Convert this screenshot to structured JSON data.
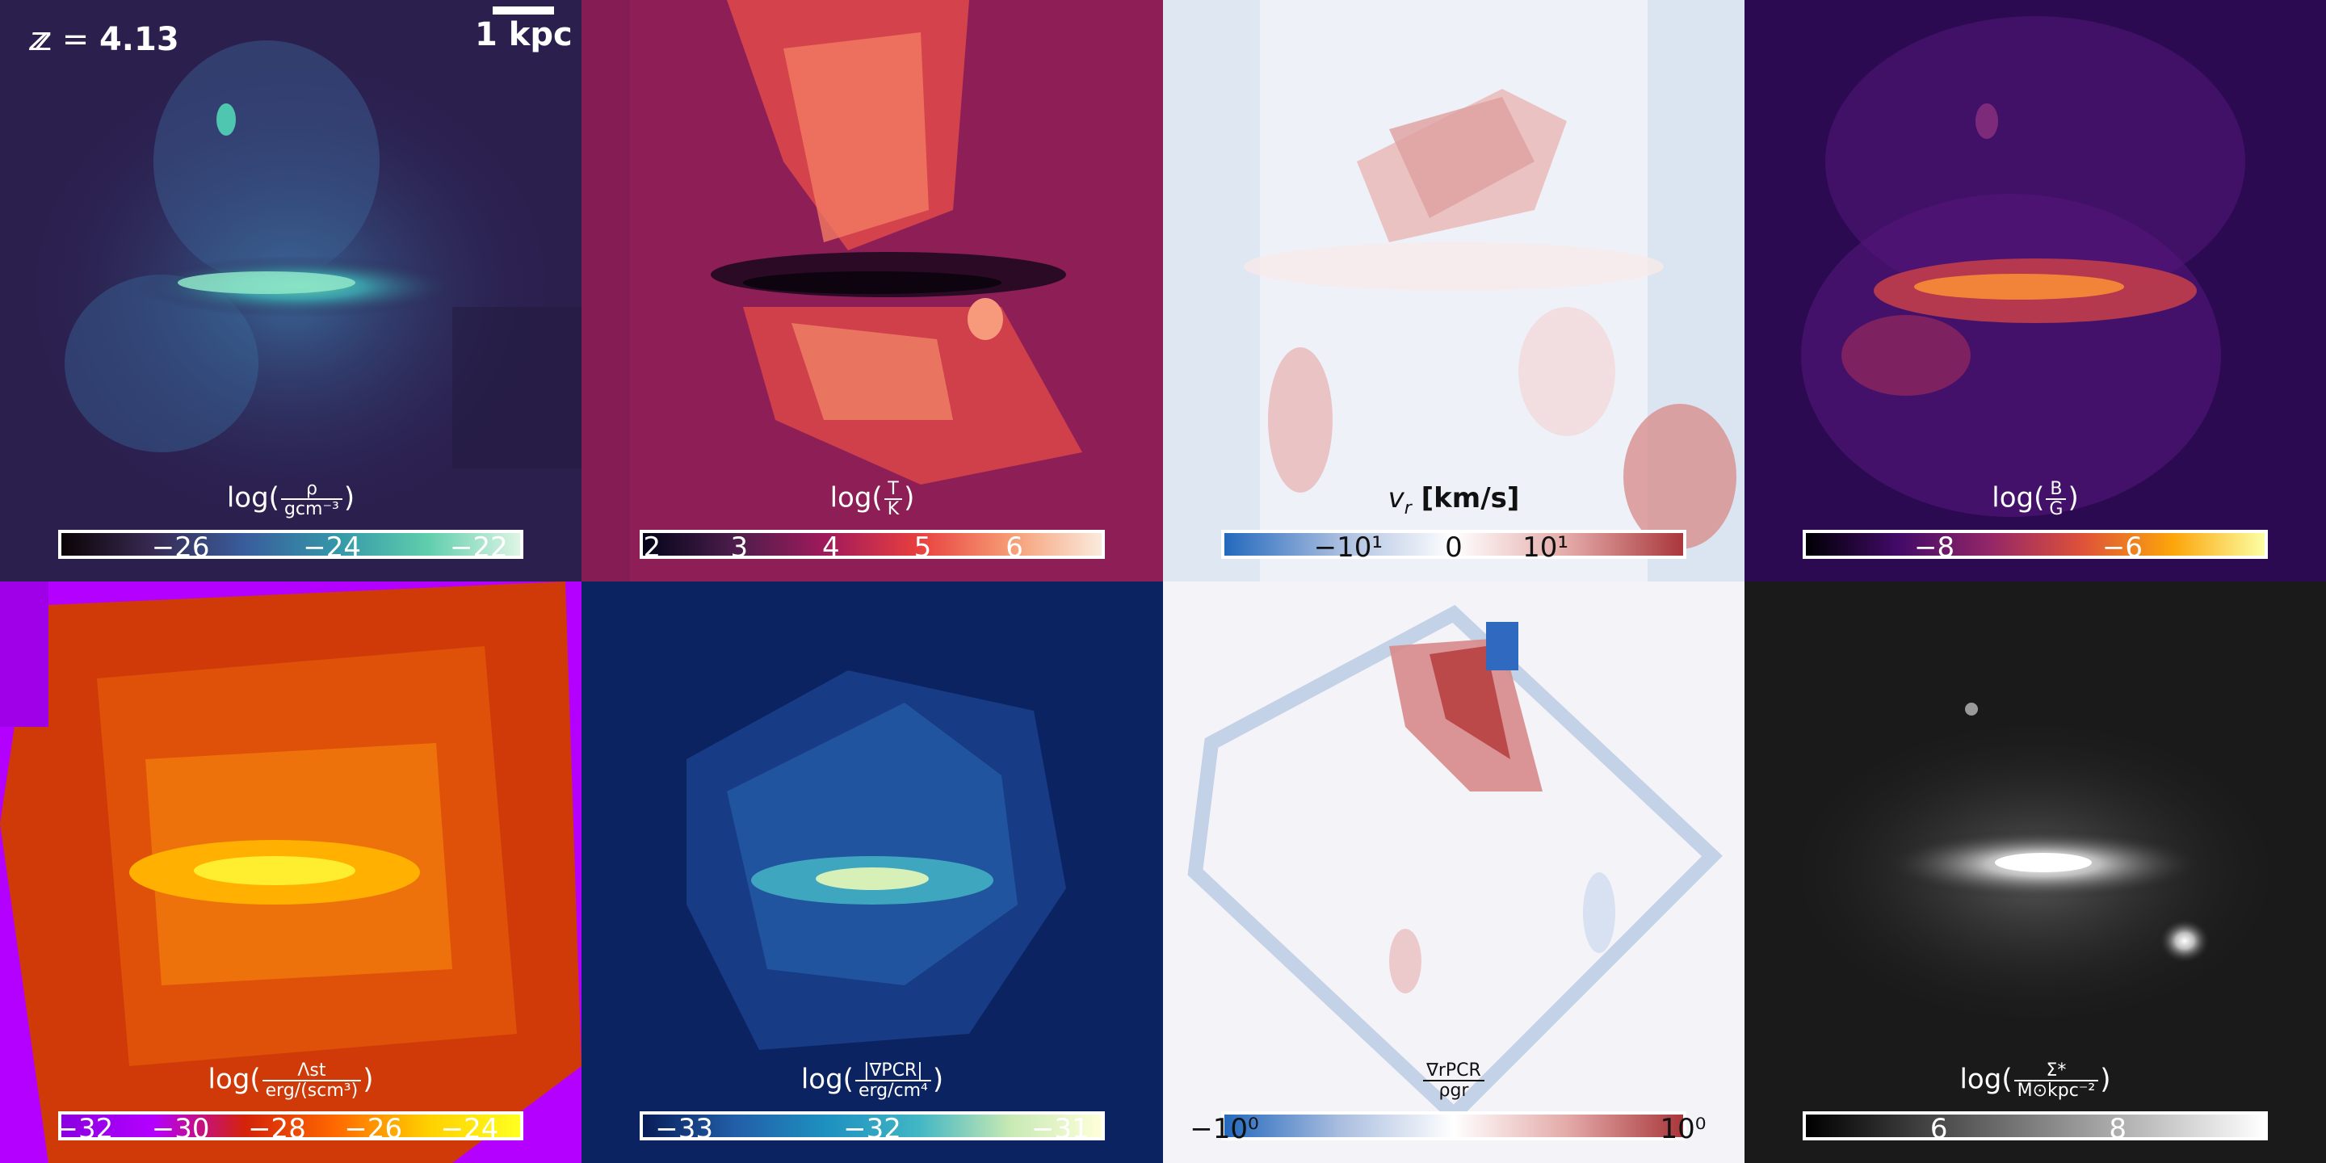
{
  "header": {
    "redshift_prefix": "z = ",
    "redshift_value": "4.13",
    "scale_label": "1 kpc"
  },
  "panels": [
    {
      "id": "density",
      "label_prefix": "log(",
      "label_num": "ρ",
      "label_den": "gcm⁻³",
      "label_suffix": ")",
      "colormap": "mako",
      "cbar_colors": [
        "#0b0405",
        "#382a54",
        "#395d9c",
        "#3497a9",
        "#60ceac",
        "#def5e5"
      ],
      "ticks": [
        "−26",
        "−24",
        "−22"
      ],
      "background": "#2b1f4e"
    },
    {
      "id": "temperature",
      "label_prefix": "log(",
      "label_num": "T",
      "label_den": "K",
      "label_suffix": ")",
      "colormap": "rocket",
      "cbar_colors": [
        "#03051a",
        "#4c1d4b",
        "#a11a5b",
        "#e83f3f",
        "#f69c73",
        "#faebdd"
      ],
      "ticks": [
        "2",
        "3",
        "4",
        "5",
        "6"
      ],
      "background": "#8e1f56"
    },
    {
      "id": "radial-velocity",
      "label_main": "v",
      "label_sub": "r",
      "label_unit": " [km/s]",
      "colormap": "vlag",
      "cbar_colors": [
        "#2369bd",
        "#a9bddf",
        "#ffffff",
        "#e3a9a7",
        "#a9373b"
      ],
      "ticks": [
        "−10¹",
        "0",
        "10¹"
      ],
      "background": "#eef2f8"
    },
    {
      "id": "magnetic-field",
      "label_prefix": "log(",
      "label_num": "B",
      "label_den": "G",
      "label_suffix": ")",
      "colormap": "plasma-inferno",
      "cbar_colors": [
        "#000004",
        "#420a68",
        "#932667",
        "#dd513a",
        "#fca50a",
        "#fcffa4"
      ],
      "ticks": [
        "−8",
        "−6"
      ],
      "background": "#2c0a52"
    },
    {
      "id": "streaming-heating",
      "label_prefix": "log(",
      "label_num": "Λst",
      "label_den": "erg/(scm³)",
      "label_suffix": ")",
      "colormap": "gnuplot",
      "cbar_colors": [
        "#8a00e0",
        "#b400ff",
        "#d4220a",
        "#ff6a00",
        "#ffd000",
        "#ffff20"
      ],
      "ticks": [
        "−32",
        "−30",
        "−28",
        "−26",
        "−24"
      ],
      "background": "#c83a0a"
    },
    {
      "id": "cr-pressure-gradient",
      "label_prefix": "log(",
      "label_num": "|∇PCR|",
      "label_den": "erg/cm⁴",
      "label_suffix": ")",
      "colormap": "YlGnBu_r",
      "cbar_colors": [
        "#081d58",
        "#225ea8",
        "#1d91c0",
        "#41b6c4",
        "#c7e9b4",
        "#ffffd9"
      ],
      "ticks": [
        "−33",
        "−32",
        "−31"
      ],
      "background": "#0b2360"
    },
    {
      "id": "cr-force-ratio",
      "label_num": "∇rPCR",
      "label_den": "ρgr",
      "colormap": "vlag",
      "cbar_colors": [
        "#2369bd",
        "#a9bddf",
        "#ffffff",
        "#e3a9a7",
        "#a9373b"
      ],
      "ticks": [
        "−10⁰",
        "10⁰"
      ],
      "background": "#f4f4f8"
    },
    {
      "id": "stellar-surface-density",
      "label_prefix": "log(",
      "label_num": "Σ*",
      "label_den": "M⊙kpc⁻²",
      "label_suffix": ")",
      "colormap": "gray",
      "cbar_colors": [
        "#000000",
        "#555555",
        "#aaaaaa",
        "#ffffff"
      ],
      "ticks": [
        "6",
        "8"
      ],
      "background": "#1a1a1a"
    }
  ]
}
